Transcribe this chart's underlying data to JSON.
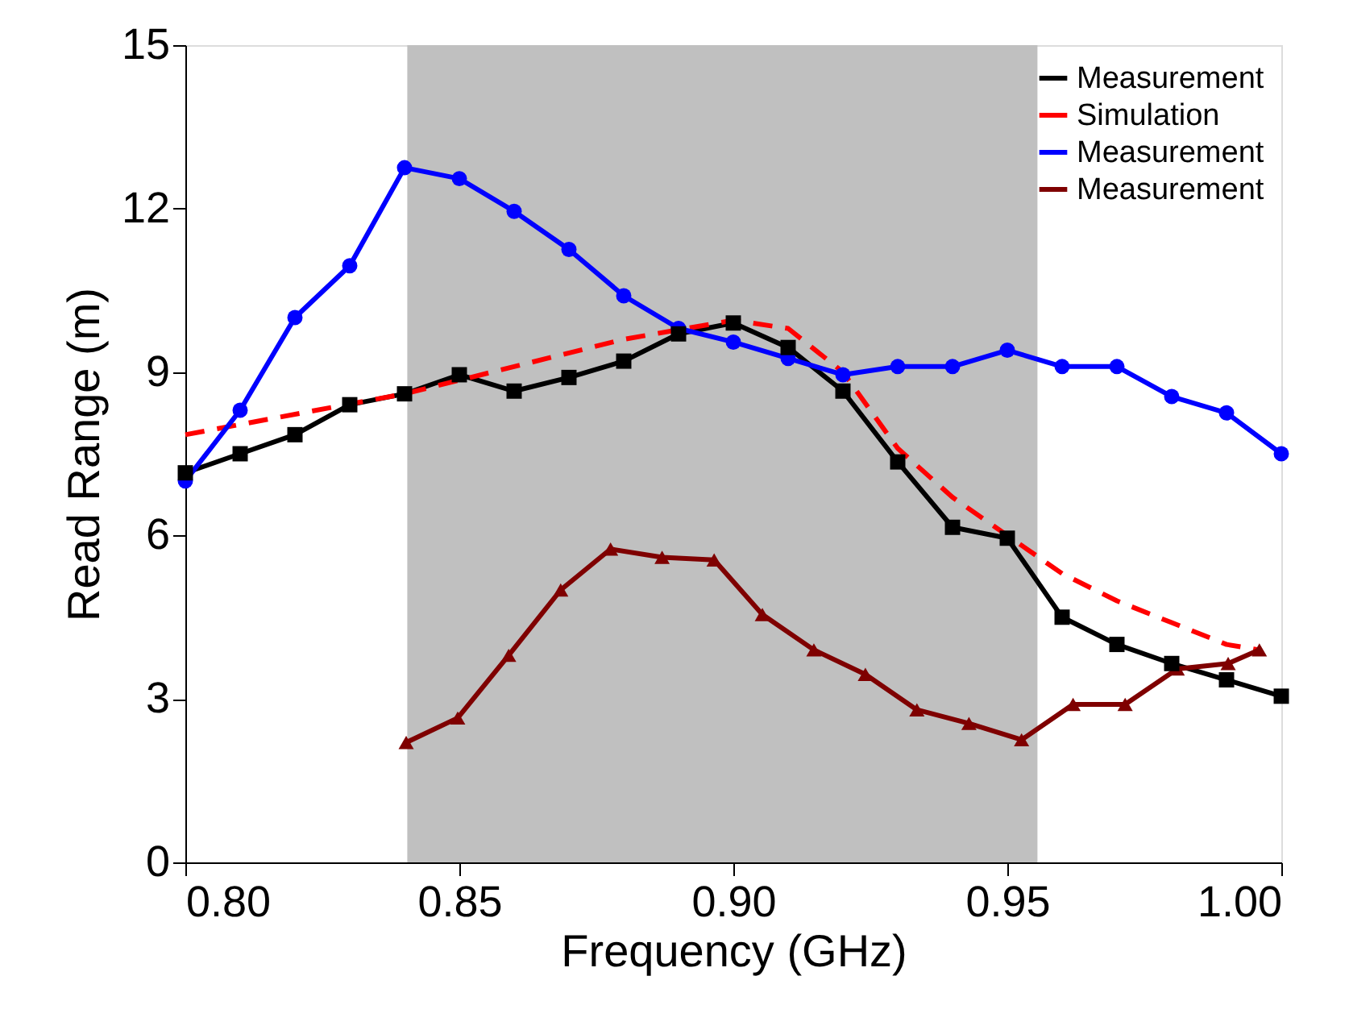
{
  "chart_data": {
    "type": "line",
    "xlabel": "Frequency (GHz)",
    "ylabel": "Read Range (m)",
    "xlim": [
      0.8,
      1.0
    ],
    "xticks": [
      {
        "value": 0.8,
        "label": "0.80"
      },
      {
        "value": 0.85,
        "label": "0.85"
      },
      {
        "value": 0.9,
        "label": "0.90"
      },
      {
        "value": 0.95,
        "label": "0.95"
      },
      {
        "value": 1.0,
        "label": "1.00"
      }
    ],
    "ylim": [
      0,
      15
    ],
    "yticks": [
      0,
      3,
      6,
      9,
      12,
      15
    ],
    "grid": false,
    "legend": "top right",
    "bands": [
      {
        "axis": "x",
        "from": 0.8405,
        "to": 0.9555,
        "color": "#c0c0c0"
      }
    ],
    "series": [
      {
        "name": "Measurement",
        "color": "#000000",
        "marker": "square",
        "line_style": "solid",
        "x": [
          0.8,
          0.81,
          0.82,
          0.83,
          0.84,
          0.85,
          0.86,
          0.87,
          0.88,
          0.89,
          0.9,
          0.91,
          0.92,
          0.93,
          0.94,
          0.95,
          0.96,
          0.97,
          0.98,
          0.99,
          1.0
        ],
        "values": [
          7.15,
          7.5,
          7.85,
          8.4,
          8.6,
          8.95,
          8.65,
          8.9,
          9.2,
          9.7,
          9.9,
          9.45,
          8.65,
          7.35,
          6.15,
          5.95,
          4.5,
          4.0,
          3.65,
          3.35,
          3.05
        ]
      },
      {
        "name": "Simulation",
        "color": "#ff0000",
        "marker": "none",
        "line_style": "dashed",
        "x": [
          0.8,
          0.84,
          0.88,
          0.9,
          0.91,
          0.92,
          0.93,
          0.94,
          0.95,
          0.96,
          0.97,
          0.98,
          0.99,
          0.996
        ],
        "values": [
          7.85,
          8.6,
          9.6,
          9.95,
          9.8,
          9.0,
          7.6,
          6.7,
          6.0,
          5.3,
          4.8,
          4.4,
          4.0,
          3.9
        ]
      },
      {
        "name": "Measurement",
        "color": "#0000ff",
        "marker": "circle",
        "line_style": "solid",
        "x": [
          0.8,
          0.81,
          0.82,
          0.83,
          0.84,
          0.85,
          0.86,
          0.87,
          0.88,
          0.89,
          0.9,
          0.91,
          0.92,
          0.93,
          0.94,
          0.95,
          0.96,
          0.97,
          0.98,
          0.99,
          1.0
        ],
        "values": [
          7.0,
          8.3,
          10.0,
          10.95,
          12.75,
          12.55,
          11.95,
          11.25,
          10.4,
          9.8,
          9.55,
          9.25,
          8.95,
          9.1,
          9.1,
          9.4,
          9.1,
          9.1,
          8.55,
          8.25,
          7.5
        ]
      },
      {
        "name": "Measurement",
        "color": "#7f0000",
        "marker": "triangle",
        "line_style": "solid",
        "x": [
          0.8403,
          0.8497,
          0.859,
          0.8685,
          0.8776,
          0.887,
          0.8965,
          0.9053,
          0.9147,
          0.9241,
          0.9335,
          0.943,
          0.9526,
          0.962,
          0.9715,
          0.981,
          0.9903,
          0.996
        ],
        "values": [
          2.2,
          2.65,
          3.8,
          5.0,
          5.75,
          5.6,
          5.55,
          4.55,
          3.9,
          3.45,
          2.8,
          2.55,
          2.25,
          2.9,
          2.9,
          3.55,
          3.65,
          3.9
        ]
      }
    ]
  }
}
